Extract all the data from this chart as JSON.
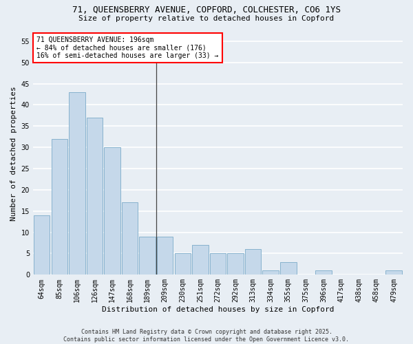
{
  "title1": "71, QUEENSBERRY AVENUE, COPFORD, COLCHESTER, CO6 1YS",
  "title2": "Size of property relative to detached houses in Copford",
  "xlabel": "Distribution of detached houses by size in Copford",
  "ylabel": "Number of detached properties",
  "categories": [
    "64sqm",
    "85sqm",
    "106sqm",
    "126sqm",
    "147sqm",
    "168sqm",
    "189sqm",
    "209sqm",
    "230sqm",
    "251sqm",
    "272sqm",
    "292sqm",
    "313sqm",
    "334sqm",
    "355sqm",
    "375sqm",
    "396sqm",
    "417sqm",
    "438sqm",
    "458sqm",
    "479sqm"
  ],
  "values": [
    14,
    32,
    43,
    37,
    30,
    17,
    9,
    9,
    5,
    7,
    5,
    5,
    6,
    1,
    3,
    0,
    1,
    0,
    0,
    0,
    1
  ],
  "bar_color": "#c5d8ea",
  "bar_edge_color": "#7aaac8",
  "ylim": [
    0,
    57
  ],
  "yticks": [
    0,
    5,
    10,
    15,
    20,
    25,
    30,
    35,
    40,
    45,
    50,
    55
  ],
  "annotation_title": "71 QUEENSBERRY AVENUE: 196sqm",
  "annotation_line1": "← 84% of detached houses are smaller (176)",
  "annotation_line2": "16% of semi-detached houses are larger (33) →",
  "vline_bar_index": 6,
  "footer1": "Contains HM Land Registry data © Crown copyright and database right 2025.",
  "footer2": "Contains public sector information licensed under the Open Government Licence v3.0.",
  "bg_color": "#e8eef4",
  "plot_bg_color": "#e8eef4",
  "grid_color": "#ffffff",
  "title1_fontsize": 9,
  "title2_fontsize": 8,
  "xlabel_fontsize": 8,
  "ylabel_fontsize": 8,
  "tick_fontsize": 7,
  "ann_fontsize": 7,
  "footer_fontsize": 6
}
